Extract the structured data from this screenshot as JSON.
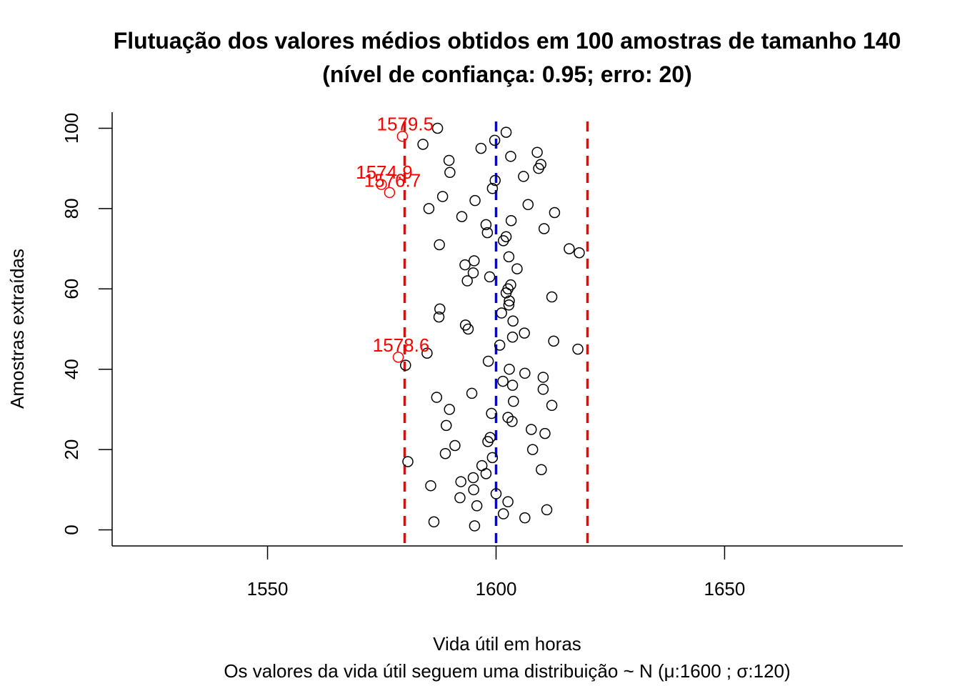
{
  "chart_data": {
    "type": "scatter",
    "title_line1": "Flutuação dos valores médios obtidos em 100 amostras de tamanho 140",
    "title_line2": "(nível de confiança: 0.95; erro: 20)",
    "xlabel": "Vida útil em horas",
    "subtitle": "Os valores da vida útil seguem uma distribuição ~ N  (μ:1600 ; σ:120)",
    "ylabel": "Amostras extraídas",
    "xlim": [
      1516,
      1689
    ],
    "ylim": [
      -4,
      104
    ],
    "x_ticks": [
      1550,
      1600,
      1650
    ],
    "y_ticks": [
      0,
      20,
      40,
      60,
      80,
      100
    ],
    "reference_lines": [
      {
        "x": 1580,
        "color": "#ff0000",
        "style": "dashed"
      },
      {
        "x": 1600,
        "color": "#0000ff",
        "style": "dashed"
      },
      {
        "x": 1620,
        "color": "#ff0000",
        "style": "dashed"
      }
    ],
    "outlier_color": "#ff0000",
    "point_color": "#000000",
    "points": [
      {
        "x": 1595.3,
        "y": 1
      },
      {
        "x": 1586.4,
        "y": 2
      },
      {
        "x": 1606.3,
        "y": 3
      },
      {
        "x": 1601.6,
        "y": 4
      },
      {
        "x": 1611.1,
        "y": 5
      },
      {
        "x": 1595.8,
        "y": 6
      },
      {
        "x": 1602.6,
        "y": 7
      },
      {
        "x": 1592.1,
        "y": 8
      },
      {
        "x": 1600.0,
        "y": 9
      },
      {
        "x": 1595.1,
        "y": 10
      },
      {
        "x": 1585.7,
        "y": 11
      },
      {
        "x": 1592.3,
        "y": 12
      },
      {
        "x": 1595.0,
        "y": 13
      },
      {
        "x": 1597.8,
        "y": 14
      },
      {
        "x": 1609.9,
        "y": 15
      },
      {
        "x": 1596.9,
        "y": 16
      },
      {
        "x": 1580.7,
        "y": 17
      },
      {
        "x": 1599.2,
        "y": 18
      },
      {
        "x": 1588.9,
        "y": 19
      },
      {
        "x": 1608.0,
        "y": 20
      },
      {
        "x": 1591.0,
        "y": 21
      },
      {
        "x": 1598.2,
        "y": 22
      },
      {
        "x": 1598.7,
        "y": 23
      },
      {
        "x": 1610.7,
        "y": 24
      },
      {
        "x": 1607.7,
        "y": 25
      },
      {
        "x": 1589.1,
        "y": 26
      },
      {
        "x": 1603.5,
        "y": 27
      },
      {
        "x": 1602.6,
        "y": 28
      },
      {
        "x": 1599.0,
        "y": 29
      },
      {
        "x": 1589.8,
        "y": 30
      },
      {
        "x": 1612.2,
        "y": 31
      },
      {
        "x": 1603.8,
        "y": 32
      },
      {
        "x": 1587.0,
        "y": 33
      },
      {
        "x": 1594.7,
        "y": 34
      },
      {
        "x": 1610.3,
        "y": 35
      },
      {
        "x": 1603.6,
        "y": 36
      },
      {
        "x": 1601.5,
        "y": 37
      },
      {
        "x": 1610.3,
        "y": 38
      },
      {
        "x": 1606.3,
        "y": 39
      },
      {
        "x": 1602.9,
        "y": 40
      },
      {
        "x": 1580.2,
        "y": 41
      },
      {
        "x": 1598.3,
        "y": 42
      },
      {
        "x": 1578.6,
        "y": 43,
        "outlier": true,
        "label": "1578.6"
      },
      {
        "x": 1584.9,
        "y": 44
      },
      {
        "x": 1617.9,
        "y": 45
      },
      {
        "x": 1600.8,
        "y": 46
      },
      {
        "x": 1612.6,
        "y": 47
      },
      {
        "x": 1603.6,
        "y": 48
      },
      {
        "x": 1606.2,
        "y": 49
      },
      {
        "x": 1593.9,
        "y": 50
      },
      {
        "x": 1593.3,
        "y": 51
      },
      {
        "x": 1603.7,
        "y": 52
      },
      {
        "x": 1587.5,
        "y": 53
      },
      {
        "x": 1601.2,
        "y": 54
      },
      {
        "x": 1587.7,
        "y": 55
      },
      {
        "x": 1602.8,
        "y": 56
      },
      {
        "x": 1602.9,
        "y": 57
      },
      {
        "x": 1612.2,
        "y": 58
      },
      {
        "x": 1602.2,
        "y": 59
      },
      {
        "x": 1602.6,
        "y": 60
      },
      {
        "x": 1603.2,
        "y": 61
      },
      {
        "x": 1593.7,
        "y": 62
      },
      {
        "x": 1598.6,
        "y": 63
      },
      {
        "x": 1595.0,
        "y": 64
      },
      {
        "x": 1604.6,
        "y": 65
      },
      {
        "x": 1593.2,
        "y": 66
      },
      {
        "x": 1595.2,
        "y": 67
      },
      {
        "x": 1602.8,
        "y": 68
      },
      {
        "x": 1618.2,
        "y": 69
      },
      {
        "x": 1616.0,
        "y": 70
      },
      {
        "x": 1587.6,
        "y": 71
      },
      {
        "x": 1601.6,
        "y": 72
      },
      {
        "x": 1602.2,
        "y": 73
      },
      {
        "x": 1598.1,
        "y": 74
      },
      {
        "x": 1610.5,
        "y": 75
      },
      {
        "x": 1597.8,
        "y": 76
      },
      {
        "x": 1603.3,
        "y": 77
      },
      {
        "x": 1592.5,
        "y": 78
      },
      {
        "x": 1612.8,
        "y": 79
      },
      {
        "x": 1585.3,
        "y": 80
      },
      {
        "x": 1607.0,
        "y": 81
      },
      {
        "x": 1595.4,
        "y": 82
      },
      {
        "x": 1588.3,
        "y": 83
      },
      {
        "x": 1576.7,
        "y": 84,
        "outlier": true,
        "label": "1576.7"
      },
      {
        "x": 1599.2,
        "y": 85
      },
      {
        "x": 1574.9,
        "y": 86,
        "outlier": true,
        "label": "1574.9"
      },
      {
        "x": 1599.8,
        "y": 87
      },
      {
        "x": 1606.0,
        "y": 88
      },
      {
        "x": 1589.9,
        "y": 89
      },
      {
        "x": 1609.3,
        "y": 90
      },
      {
        "x": 1609.8,
        "y": 91
      },
      {
        "x": 1589.7,
        "y": 92
      },
      {
        "x": 1603.2,
        "y": 93
      },
      {
        "x": 1609.0,
        "y": 94
      },
      {
        "x": 1596.7,
        "y": 95
      },
      {
        "x": 1584.0,
        "y": 96
      },
      {
        "x": 1599.7,
        "y": 97
      },
      {
        "x": 1579.5,
        "y": 98,
        "outlier": true,
        "label": "1579.5"
      },
      {
        "x": 1602.2,
        "y": 99
      },
      {
        "x": 1587.2,
        "y": 100
      }
    ]
  }
}
